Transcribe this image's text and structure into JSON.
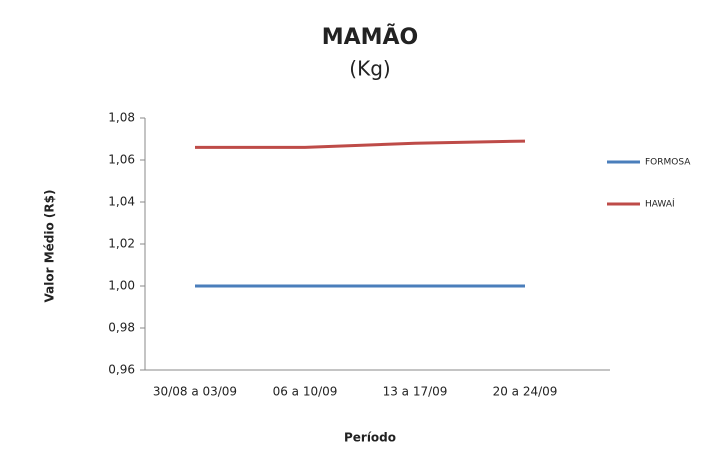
{
  "chart_data": {
    "type": "line",
    "title": "MAMÃO",
    "subtitle": "(Kg)",
    "x_label": "Período",
    "y_label": "Valor Médio (R$)",
    "categories": [
      "30/08 a 03/09",
      "06 a 10/09",
      "13 a 17/09",
      "20 a 24/09"
    ],
    "series": [
      {
        "name": "FORMOSA",
        "color": "#4a7ebb",
        "values": [
          1.0,
          1.0,
          1.0,
          1.0
        ]
      },
      {
        "name": "HAWAÍ",
        "color": "#be4b48",
        "values": [
          1.066,
          1.066,
          1.068,
          1.069
        ]
      }
    ],
    "ylim": [
      0.96,
      1.08
    ],
    "yticks": [
      {
        "value": 0.96,
        "label": "0,96"
      },
      {
        "value": 0.98,
        "label": "0,98"
      },
      {
        "value": 1.0,
        "label": "1,00"
      },
      {
        "value": 1.02,
        "label": "1,02"
      },
      {
        "value": 1.04,
        "label": "1,04"
      },
      {
        "value": 1.06,
        "label": "1,06"
      },
      {
        "value": 1.08,
        "label": "1,08"
      }
    ],
    "legend": "right"
  }
}
